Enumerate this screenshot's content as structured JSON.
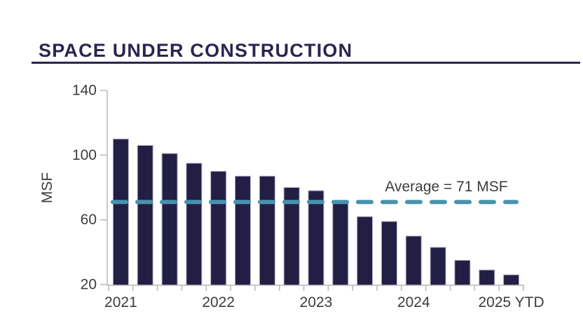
{
  "header": {
    "title": "SPACE UNDER CONSTRUCTION"
  },
  "chart_data": {
    "type": "bar",
    "title": "SPACE UNDER CONSTRUCTION",
    "ylabel": "MSF",
    "xlabel": "",
    "ylim": [
      20,
      140
    ],
    "yticks": [
      140,
      100,
      60,
      20
    ],
    "n_bars": 17,
    "values": [
      110,
      106,
      101,
      95,
      90,
      87,
      87,
      80,
      78,
      72,
      62,
      59,
      50,
      43,
      35,
      29,
      26
    ],
    "x_labels": [
      {
        "text": "2021",
        "bar_index": 0
      },
      {
        "text": "2022",
        "bar_index": 4
      },
      {
        "text": "2023",
        "bar_index": 8
      },
      {
        "text": "2024",
        "bar_index": 12
      },
      {
        "text": "2025 YTD",
        "bar_index": 16
      }
    ],
    "average_line": {
      "value": 71,
      "label": "Average = 71 MSF"
    },
    "legend": null,
    "grid": false,
    "colors": {
      "bar_fill": "#231f44",
      "bar_stroke": "#b3b1c8",
      "average_dash": "#4793ae",
      "axis": "#b9b9b9",
      "tick_text": "#3d3d3d",
      "title_navy": "#2a2550"
    }
  }
}
